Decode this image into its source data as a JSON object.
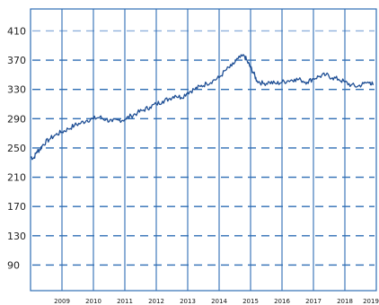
{
  "chart_data": {
    "type": "line",
    "title": "",
    "xlabel": "",
    "ylabel": "",
    "grid": true,
    "ylim": [
      55,
      440
    ],
    "xlim": [
      2008.0,
      2019.0
    ],
    "y_ticks": [
      90,
      130,
      170,
      210,
      250,
      290,
      330,
      370,
      410
    ],
    "x_ticks": [
      "2009",
      "2010",
      "2011",
      "2012",
      "2013",
      "2014",
      "2015",
      "2016",
      "2017",
      "2018",
      "2019"
    ],
    "series": [
      {
        "values_x": [
          2008.0,
          2008.1,
          2008.2,
          2008.3,
          2008.4,
          2008.6,
          2008.8,
          2009.0,
          2009.2,
          2009.4,
          2009.6,
          2009.8,
          2010.0,
          2010.2,
          2010.4,
          2010.6,
          2010.8,
          2011.0,
          2011.2,
          2011.4,
          2011.6,
          2011.8,
          2012.0,
          2012.2,
          2012.4,
          2012.6,
          2012.8,
          2013.0,
          2013.2,
          2013.4,
          2013.6,
          2013.8,
          2014.0,
          2014.2,
          2014.4,
          2014.6,
          2014.8,
          2014.9,
          2015.0,
          2015.1,
          2015.2,
          2015.4,
          2015.6,
          2015.8,
          2016.0,
          2016.2,
          2016.4,
          2016.6,
          2016.8,
          2017.0,
          2017.2,
          2017.4,
          2017.6,
          2017.8,
          2018.0,
          2018.2,
          2018.4,
          2018.6,
          2018.8,
          2018.9
        ],
        "values": [
          238,
          236,
          245,
          248,
          255,
          262,
          268,
          272,
          276,
          281,
          284,
          288,
          290,
          292,
          289,
          286,
          288,
          289,
          294,
          298,
          302,
          306,
          310,
          314,
          317,
          322,
          319,
          326,
          330,
          334,
          338,
          342,
          346,
          356,
          362,
          372,
          376,
          368,
          360,
          352,
          342,
          338,
          340,
          338,
          340,
          342,
          344,
          343,
          340,
          345,
          348,
          350,
          346,
          344,
          340,
          336,
          334,
          338,
          340,
          336
        ]
      }
    ]
  }
}
